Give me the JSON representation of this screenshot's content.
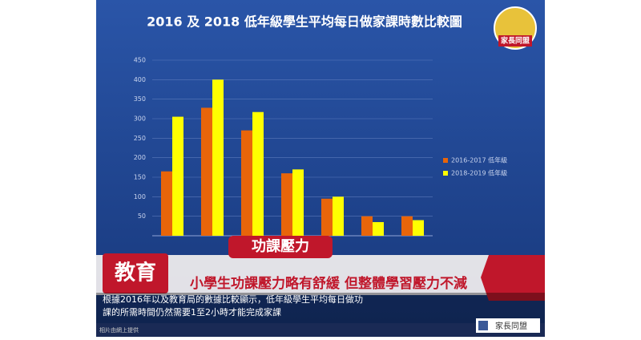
{
  "chart_data": {
    "type": "bar",
    "title": "2016 及 2018 低年級學生平均每日做家課時數比較圖",
    "categories": [
      null,
      null,
      null,
      null,
      null,
      null,
      null
    ],
    "series": [
      {
        "name": "2016-2017 低年級",
        "color": "#e8650a",
        "values": [
          165,
          328,
          270,
          160,
          95,
          50,
          50
        ]
      },
      {
        "name": "2018-2019 低年級",
        "color": "#ffff00",
        "values": [
          305,
          400,
          317,
          170,
          100,
          35,
          40
        ]
      }
    ],
    "ylim": [
      0,
      450
    ],
    "yticks": [
      50,
      100,
      150,
      200,
      250,
      300,
      350,
      400,
      450
    ],
    "grid": true,
    "legend": "right",
    "annotations": [
      "家長同盟",
      "教育",
      "功課壓力",
      "小學生功課壓力略有舒緩 但整體學習壓力不減",
      "根據2016年以及教育局的數據比較顯示，低年級學生平均每日做功",
      "課的所需時間仍然需要1至2小時才能完成家課",
      "相片由網上提供",
      "家長同盟"
    ]
  }
}
